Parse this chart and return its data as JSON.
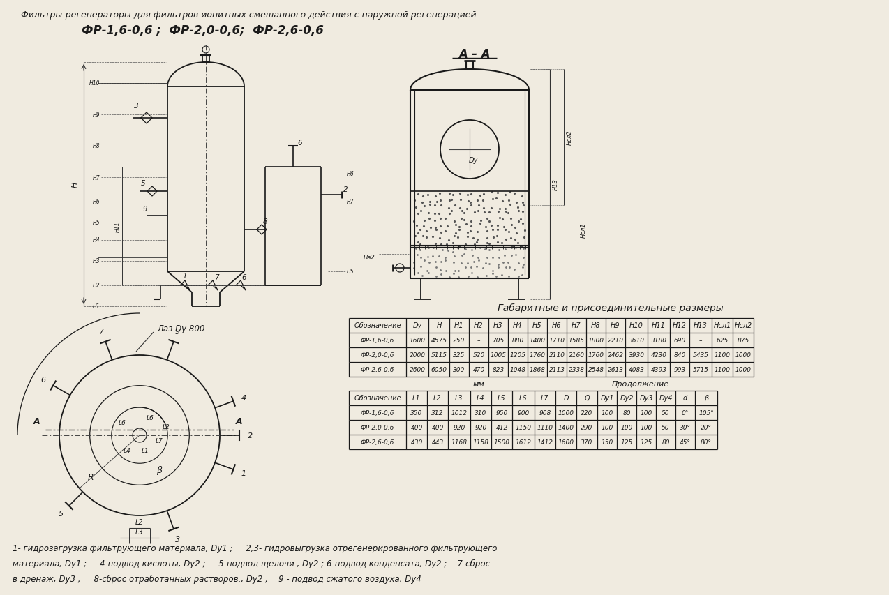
{
  "title_line1": "Фильтры-регенераторы для фильтров ионитных смешанного действия с наружной регенерацией",
  "title_line2": "ФР-1,6-0,6 ;  ФР-2,0-0,6;  ФР-2,6-0,6",
  "section_label": "А – А",
  "table1_title": "Габаритные и присоединительные размеры",
  "table1_header": [
    "Обозначение",
    "Dy",
    "H",
    "H1",
    "H2",
    "H3",
    "H4",
    "H5",
    "H6",
    "H7",
    "H8",
    "H9",
    "H10",
    "H11",
    "H12",
    "H13",
    "Hсл1",
    "Hсл2"
  ],
  "table1_rows": [
    [
      "ФР-1,6-0,6",
      "1600",
      "4575",
      "250",
      "–",
      "705",
      "880",
      "1400",
      "1710",
      "1585",
      "1800",
      "2210",
      "3610",
      "3180",
      "690",
      "–",
      "625",
      "875"
    ],
    [
      "ФР-2,0-0,6",
      "2000",
      "5115",
      "325",
      "520",
      "1005",
      "1205",
      "1760",
      "2110",
      "2160",
      "1760",
      "2462",
      "3930",
      "4230",
      "840",
      "5435",
      "1100",
      "1000"
    ],
    [
      "ФР-2,6-0,6",
      "2600",
      "6050",
      "300",
      "470",
      "823",
      "1048",
      "1868",
      "2113",
      "2338",
      "2548",
      "2613",
      "4083",
      "4393",
      "993",
      "5715",
      "1100",
      "1000"
    ]
  ],
  "table2_note_mm": "мм",
  "table2_note_prod": "Продолжение",
  "table2_header": [
    "Обозначение",
    "L1",
    "L2",
    "L3",
    "L4",
    "L5",
    "L6",
    "L7",
    "D",
    "Q",
    "Dy1",
    "Dy2",
    "Dy3",
    "Dy4",
    "d",
    "β"
  ],
  "table2_rows": [
    [
      "ФР-1,6-0,6",
      "350",
      "312",
      "1012",
      "310",
      "950",
      "900",
      "908",
      "1000",
      "220",
      "100",
      "80",
      "100",
      "50",
      "0°",
      "105°"
    ],
    [
      "ФР-2,0-0,6",
      "400",
      "400",
      "920",
      "920",
      "412",
      "1150",
      "1110",
      "1400",
      "290",
      "100",
      "100",
      "100",
      "50",
      "30°",
      "20°"
    ],
    [
      "ФР-2,6-0,6",
      "430",
      "443",
      "1168",
      "1158",
      "1500",
      "1612",
      "1412",
      "1600",
      "370",
      "150",
      "125",
      "125",
      "80",
      "45°",
      "80°"
    ]
  ],
  "footnote_lines": [
    "1- гидрозагрузка фильтрующего материала, Dy1 ;     2,3- гидровыгрузка отрегенерированного фильтрующего",
    "материала, Dy1 ;     4-подвод кислоты, Dy2 ;     5-подвод щелочи , Dy2 ; 6-подвод конденсата, Dy2 ;    7-сброс",
    "в дренаж, Dy3 ;     8-сброс отработанных растворов., Dy2 ;    9 - подвод сжатого воздуха, Dy4"
  ],
  "bg_color": "#f0ebe0",
  "line_color": "#1a1a1a",
  "text_color": "#1a1a1a"
}
